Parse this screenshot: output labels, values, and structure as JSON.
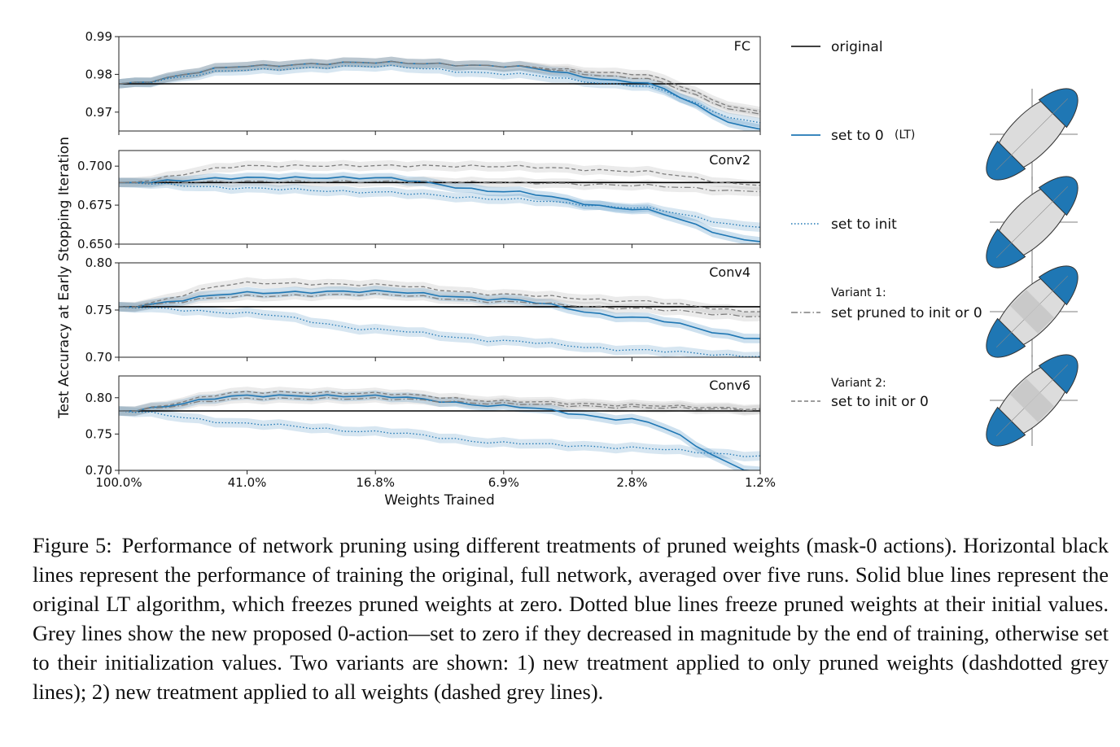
{
  "figure": {
    "ylabel": "Test Accuracy at Early Stopping Iteration",
    "xlabel": "Weights Trained",
    "x_tick_labels": [
      "100.0%",
      "41.0%",
      "16.8%",
      "6.9%",
      "2.8%",
      "1.2%"
    ]
  },
  "legend": {
    "original": "original",
    "set_to_0": "set to 0",
    "set_to_0_tag": "(LT)",
    "set_to_init": "set to init",
    "variant1_title": "Variant 1:",
    "variant1": "set pruned to init or 0",
    "variant2_title": "Variant 2:",
    "variant2": "set to init or 0"
  },
  "colors": {
    "blue": "#1f77b4",
    "grey": "#7f7f7f",
    "original": "#000000"
  },
  "chart_data": [
    {
      "type": "line",
      "title": "FC",
      "ylim": [
        0.965,
        0.99
      ],
      "yticks": [
        "0.99",
        "0.98",
        "0.97"
      ],
      "x": [
        "100.0%",
        "41.0%",
        "16.8%",
        "6.9%",
        "2.8%",
        "1.2%"
      ],
      "series": [
        {
          "name": "original",
          "values": [
            0.9775,
            0.9775,
            0.9775,
            0.9775,
            0.9775,
            0.9775
          ]
        },
        {
          "name": "set to 0",
          "values": [
            0.9775,
            0.9822,
            0.9832,
            0.9822,
            0.9781,
            0.9655
          ]
        },
        {
          "name": "set to init",
          "values": [
            0.9775,
            0.9812,
            0.9822,
            0.9802,
            0.9772,
            0.9672
          ]
        },
        {
          "name": "set pruned to init or 0",
          "values": [
            0.9775,
            0.9822,
            0.9832,
            0.9822,
            0.9792,
            0.9695
          ]
        },
        {
          "name": "set to init or 0",
          "values": [
            0.9775,
            0.9822,
            0.9832,
            0.9822,
            0.9802,
            0.9702
          ]
        }
      ]
    },
    {
      "type": "line",
      "title": "Conv2",
      "ylim": [
        0.65,
        0.71
      ],
      "yticks": [
        "0.700",
        "0.675",
        "0.650"
      ],
      "x": [
        "100.0%",
        "41.0%",
        "16.8%",
        "6.9%",
        "2.8%",
        "1.2%"
      ],
      "series": [
        {
          "name": "original",
          "values": [
            0.6895,
            0.6895,
            0.6895,
            0.6895,
            0.6895,
            0.6895
          ]
        },
        {
          "name": "set to 0",
          "values": [
            0.6895,
            0.6925,
            0.6925,
            0.6838,
            0.6726,
            0.6516
          ]
        },
        {
          "name": "set to init",
          "values": [
            0.6895,
            0.6858,
            0.6833,
            0.6789,
            0.6735,
            0.6608
          ]
        },
        {
          "name": "set pruned to init or 0",
          "values": [
            0.6895,
            0.6901,
            0.6901,
            0.6895,
            0.6878,
            0.6836
          ]
        },
        {
          "name": "set to init or 0",
          "values": [
            0.6895,
            0.7001,
            0.7003,
            0.6999,
            0.6968,
            0.6876
          ]
        }
      ]
    },
    {
      "type": "line",
      "title": "Conv4",
      "ylim": [
        0.7,
        0.8
      ],
      "yticks": [
        "0.80",
        "0.75",
        "0.70"
      ],
      "x": [
        "100.0%",
        "41.0%",
        "16.8%",
        "6.9%",
        "2.8%",
        "1.2%"
      ],
      "series": [
        {
          "name": "original",
          "values": [
            0.7535,
            0.7535,
            0.7535,
            0.7535,
            0.7535,
            0.7535
          ]
        },
        {
          "name": "set to 0",
          "values": [
            0.7535,
            0.7682,
            0.7699,
            0.7613,
            0.7423,
            0.7197
          ]
        },
        {
          "name": "set to init",
          "values": [
            0.7535,
            0.7466,
            0.7293,
            0.7172,
            0.7077,
            0.7008
          ]
        },
        {
          "name": "set pruned to init or 0",
          "values": [
            0.7535,
            0.7647,
            0.7665,
            0.7587,
            0.7518,
            0.7431
          ]
        },
        {
          "name": "set to init or 0",
          "values": [
            0.7535,
            0.7786,
            0.7768,
            0.7665,
            0.7596,
            0.7483
          ]
        }
      ]
    },
    {
      "type": "line",
      "title": "Conv6",
      "ylim": [
        0.7,
        0.83
      ],
      "yticks": [
        "0.80",
        "0.75",
        "0.70"
      ],
      "x": [
        "100.0%",
        "41.0%",
        "16.8%",
        "6.9%",
        "2.8%",
        "1.2%"
      ],
      "series": [
        {
          "name": "original",
          "values": [
            0.7818,
            0.7818,
            0.7818,
            0.7818,
            0.7818,
            0.7818
          ]
        },
        {
          "name": "set to 0",
          "values": [
            0.7818,
            0.8028,
            0.8023,
            0.7885,
            0.7699,
            0.6987
          ]
        },
        {
          "name": "set to init",
          "values": [
            0.7818,
            0.7643,
            0.753,
            0.7378,
            0.7309,
            0.7199
          ]
        },
        {
          "name": "set pruned to init or 0",
          "values": [
            0.7818,
            0.7987,
            0.7987,
            0.7919,
            0.7867,
            0.7834
          ]
        },
        {
          "name": "set to init or 0",
          "values": [
            0.7818,
            0.8077,
            0.8062,
            0.7953,
            0.7897,
            0.785
          ]
        }
      ]
    }
  ],
  "caption": {
    "label": "Figure 5:",
    "text": "Performance of network pruning using different treatments of pruned weights (mask-0 actions). Horizontal black lines represent the performance of training the original, full network, averaged over five runs. Solid blue lines represent the original LT algorithm, which freezes pruned weights at zero. Dotted blue lines freeze pruned weights at their initial values. Grey lines show the new proposed 0-action—set to zero if they decreased in magnitude by the end of training, otherwise set to their initialization values. Two variants are shown: 1) new treatment applied to only pruned weights (dashdotted grey lines); 2) new treatment applied to all weights (dashed grey lines)."
  }
}
